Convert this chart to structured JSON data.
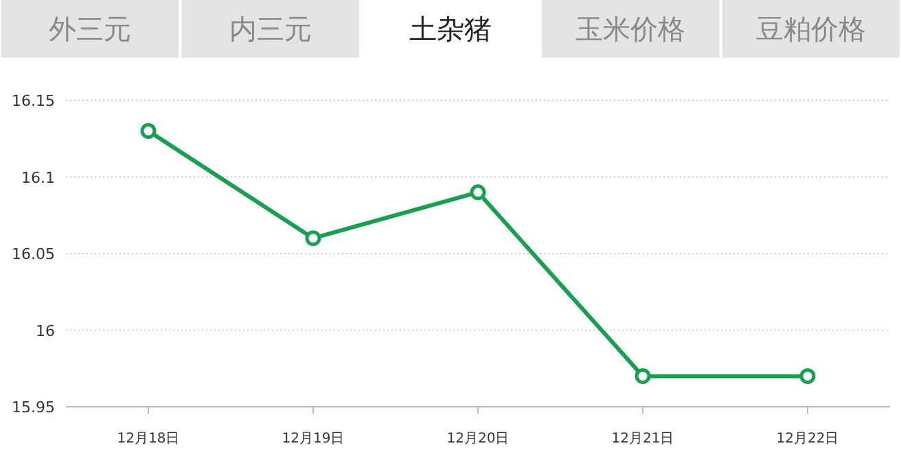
{
  "chart_data": {
    "type": "line",
    "title": "土杂猪",
    "annotations": [
      "外三元",
      "内三元",
      "玉米价格",
      "豆粕价格"
    ],
    "categories": [
      "12月18日",
      "12月19日",
      "12月20日",
      "12月21日",
      "12月22日"
    ],
    "series": [
      {
        "color": "#16a050",
        "values": [
          16.13,
          16.06,
          16.09,
          15.97,
          15.97
        ]
      }
    ],
    "ylim": [
      15.95,
      16.15
    ],
    "yticks": [
      15.95,
      16,
      16.05,
      16.1,
      16.15
    ],
    "grid": "y",
    "marker": "circle",
    "line_style": "solid"
  }
}
